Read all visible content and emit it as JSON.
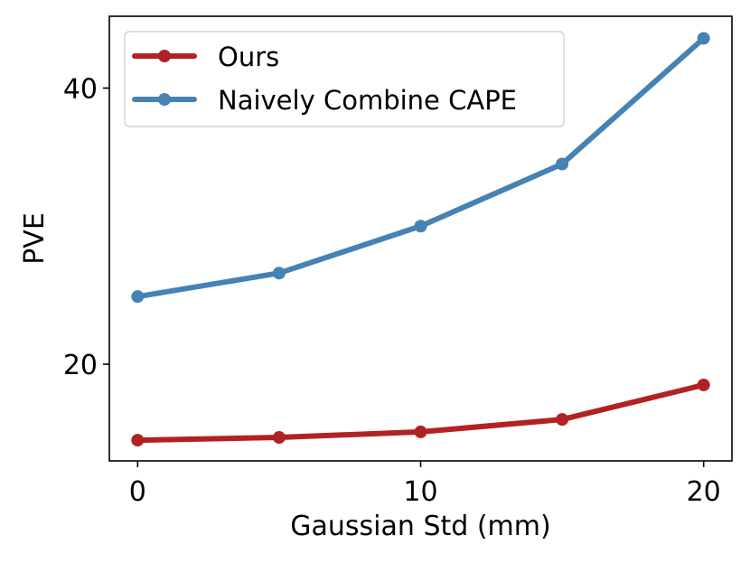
{
  "chart_data": {
    "type": "line",
    "title": "",
    "xlabel": "Gaussian Std (mm)",
    "ylabel": "PVE",
    "x": [
      0,
      5,
      10,
      15,
      20
    ],
    "xticks": [
      0,
      10,
      20
    ],
    "yticks": [
      20,
      40
    ],
    "xlim": [
      -1.0,
      21.0
    ],
    "ylim": [
      13.0,
      45.2
    ],
    "grid": false,
    "legend_position": "top-left",
    "series": [
      {
        "name": "Ours",
        "color": "#b22222",
        "values": [
          14.5,
          14.7,
          15.1,
          16.0,
          18.5
        ]
      },
      {
        "name": "Naively Combine CAPE",
        "color": "#4682b4",
        "values": [
          24.9,
          26.6,
          30.0,
          34.5,
          43.6
        ]
      }
    ]
  }
}
